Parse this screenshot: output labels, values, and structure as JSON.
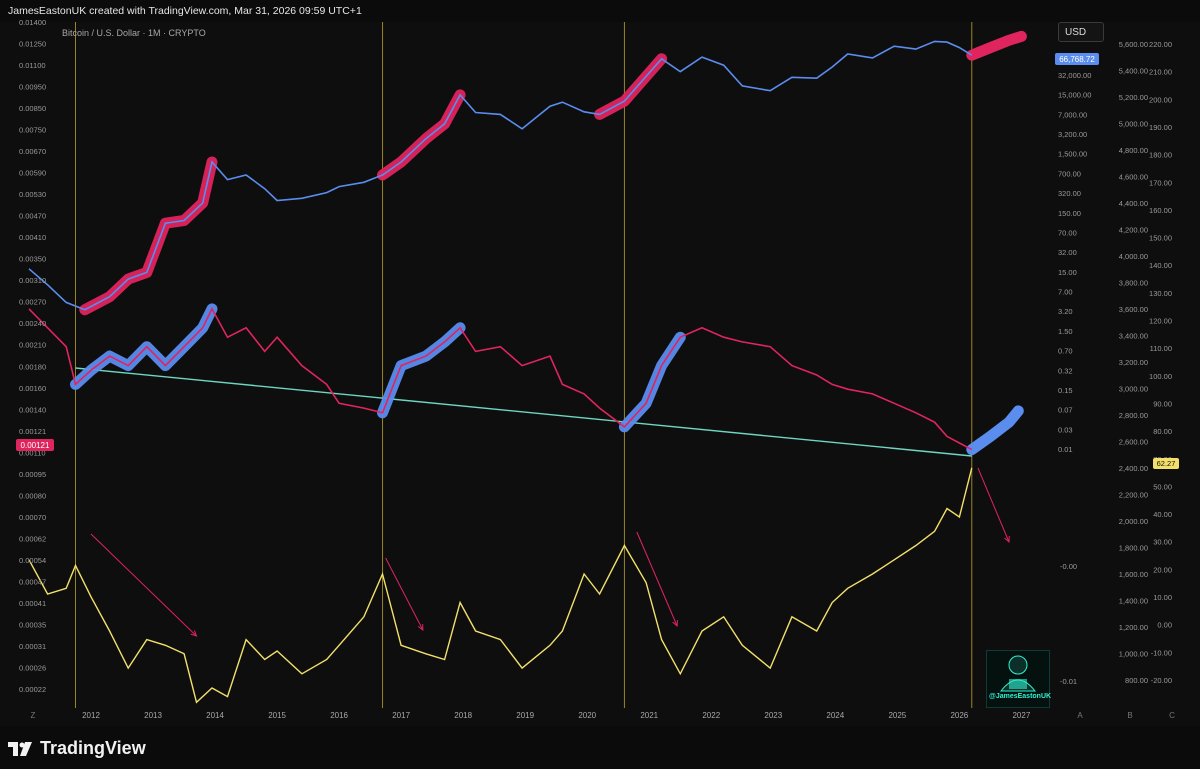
{
  "header": {
    "attribution": "JamesEastonUK created with TradingView.com, Mar 31, 2026 09:59 UTC+1"
  },
  "chart_meta": {
    "symbol_title": "Bitcoin / U.S. Dollar · 1M · CRYPTO",
    "currency_button": "USD",
    "last_price_label": "66,768.72",
    "left_price_label": "0.00121",
    "oscillator_label": "62.27",
    "watermark_label": "@JamesEastonUK",
    "footer_brand": "TradingView",
    "corner_left": "Z",
    "corner_a": "A",
    "corner_b": "B",
    "corner_c": "C"
  },
  "colors": {
    "background": "#0e0e0f",
    "price_line": "#5b8def",
    "ratio_line": "#e0245e",
    "oscillator_line": "#f3e06a",
    "trendline": "#6fd6c1",
    "cycle_marker": "#9a8524",
    "highlight_pink": "#e0245e",
    "highlight_blue": "#5b8def"
  },
  "chart_data": {
    "type": "line",
    "title": "Bitcoin / U.S. Dollar · 1M · CRYPTO",
    "x_ticks": [
      "2012",
      "2013",
      "2014",
      "2015",
      "2016",
      "2017",
      "2018",
      "2019",
      "2020",
      "2021",
      "2022",
      "2023",
      "2024",
      "2025",
      "2026",
      "2027"
    ],
    "cycle_markers": [
      2011.75,
      2016.7,
      2020.6,
      2026.2
    ],
    "axes": {
      "left_ratio": [
        "0.01400",
        "0.01250",
        "0.01100",
        "0.00950",
        "0.00850",
        "0.00750",
        "0.00670",
        "0.00590",
        "0.00530",
        "0.00470",
        "0.00410",
        "0.00350",
        "0.00310",
        "0.00270",
        "0.00240",
        "0.00210",
        "0.00180",
        "0.00160",
        "0.00140",
        "0.00121",
        "0.00110",
        "0.00095",
        "0.00080",
        "0.00070",
        "0.00062",
        "0.00054",
        "0.00047",
        "0.00041",
        "0.00035",
        "0.00031",
        "0.00026",
        "0.00022"
      ],
      "price_usd_log": [
        "66,768.72",
        "32,000.00",
        "15,000.00",
        "7,000.00",
        "3,200.00",
        "1,500.00",
        "700.00",
        "320.00",
        "150.00",
        "70.00",
        "32.00",
        "15.00",
        "7.00",
        "3.20",
        "1.50",
        "0.70",
        "0.32",
        "0.15",
        "0.07",
        "0.03",
        "0.01",
        "-0.00",
        "-0.01"
      ],
      "right_a": [
        "5,600.00",
        "5,400.00",
        "5,200.00",
        "5,000.00",
        "4,800.00",
        "4,600.00",
        "4,400.00",
        "4,200.00",
        "4,000.00",
        "3,800.00",
        "3,600.00",
        "3,400.00",
        "3,200.00",
        "3,000.00",
        "2,800.00",
        "2,600.00",
        "2,400.00",
        "2,200.00",
        "2,000.00",
        "1,800.00",
        "1,600.00",
        "1,400.00",
        "1,200.00",
        "1,000.00",
        "800.00"
      ],
      "right_b": [
        "220.00",
        "210.00",
        "200.00",
        "190.00",
        "180.00",
        "170.00",
        "160.00",
        "150.00",
        "140.00",
        "130.00",
        "120.00",
        "110.00",
        "100.00",
        "90.00",
        "80.00",
        "70.00",
        "62.27",
        "50.00",
        "40.00",
        "30.00",
        "20.00",
        "10.00",
        "0.00",
        "-10.00",
        "-20.00"
      ]
    },
    "series": [
      {
        "name": "BTCUSD (log)",
        "unit": "USD",
        "points": [
          [
            2011.0,
            15
          ],
          [
            2011.3,
            8
          ],
          [
            2011.6,
            4
          ],
          [
            2011.9,
            3
          ],
          [
            2012.3,
            5
          ],
          [
            2012.6,
            10
          ],
          [
            2012.9,
            13
          ],
          [
            2013.2,
            90
          ],
          [
            2013.5,
            100
          ],
          [
            2013.8,
            200
          ],
          [
            2013.95,
            1000
          ],
          [
            2014.2,
            500
          ],
          [
            2014.5,
            600
          ],
          [
            2014.8,
            350
          ],
          [
            2015.0,
            220
          ],
          [
            2015.4,
            240
          ],
          [
            2015.8,
            300
          ],
          [
            2016.0,
            380
          ],
          [
            2016.4,
            450
          ],
          [
            2016.7,
            600
          ],
          [
            2017.0,
            1000
          ],
          [
            2017.4,
            2500
          ],
          [
            2017.7,
            4500
          ],
          [
            2017.95,
            14000
          ],
          [
            2018.2,
            7000
          ],
          [
            2018.6,
            6500
          ],
          [
            2018.95,
            3700
          ],
          [
            2019.4,
            9000
          ],
          [
            2019.6,
            10500
          ],
          [
            2019.95,
            7200
          ],
          [
            2020.2,
            6500
          ],
          [
            2020.6,
            11000
          ],
          [
            2020.95,
            29000
          ],
          [
            2021.2,
            58000
          ],
          [
            2021.5,
            35000
          ],
          [
            2021.85,
            62000
          ],
          [
            2022.2,
            45000
          ],
          [
            2022.5,
            20000
          ],
          [
            2022.95,
            16500
          ],
          [
            2023.3,
            28000
          ],
          [
            2023.7,
            27000
          ],
          [
            2023.95,
            42000
          ],
          [
            2024.2,
            70000
          ],
          [
            2024.6,
            60000
          ],
          [
            2024.95,
            95000
          ],
          [
            2025.3,
            85000
          ],
          [
            2025.6,
            115000
          ],
          [
            2025.8,
            112000
          ],
          [
            2026.0,
            90000
          ],
          [
            2026.2,
            66768.72
          ]
        ]
      },
      {
        "name": "BTC ratio",
        "points": [
          [
            2011.0,
            0.0027
          ],
          [
            2011.3,
            0.0025
          ],
          [
            2011.6,
            0.0023
          ],
          [
            2011.75,
            0.0019
          ],
          [
            2012.0,
            0.00205
          ],
          [
            2012.3,
            0.0022
          ],
          [
            2012.6,
            0.0021
          ],
          [
            2012.9,
            0.0023
          ],
          [
            2013.2,
            0.0021
          ],
          [
            2013.5,
            0.0023
          ],
          [
            2013.8,
            0.0025
          ],
          [
            2013.95,
            0.0027
          ],
          [
            2014.2,
            0.0024
          ],
          [
            2014.5,
            0.0025
          ],
          [
            2014.8,
            0.00225
          ],
          [
            2015.0,
            0.0024
          ],
          [
            2015.4,
            0.0021
          ],
          [
            2015.8,
            0.0019
          ],
          [
            2016.0,
            0.0017
          ],
          [
            2016.4,
            0.00165
          ],
          [
            2016.7,
            0.0016
          ],
          [
            2017.0,
            0.0021
          ],
          [
            2017.4,
            0.0022
          ],
          [
            2017.7,
            0.00235
          ],
          [
            2017.95,
            0.0025
          ],
          [
            2018.2,
            0.00225
          ],
          [
            2018.6,
            0.0023
          ],
          [
            2018.95,
            0.0021
          ],
          [
            2019.4,
            0.0022
          ],
          [
            2019.6,
            0.0019
          ],
          [
            2019.95,
            0.0018
          ],
          [
            2020.2,
            0.00165
          ],
          [
            2020.6,
            0.00145
          ],
          [
            2020.95,
            0.0017
          ],
          [
            2021.2,
            0.0021
          ],
          [
            2021.5,
            0.0024
          ],
          [
            2021.85,
            0.0025
          ],
          [
            2022.2,
            0.0024
          ],
          [
            2022.5,
            0.00235
          ],
          [
            2022.95,
            0.0023
          ],
          [
            2023.3,
            0.0021
          ],
          [
            2023.7,
            0.002
          ],
          [
            2023.95,
            0.0019
          ],
          [
            2024.2,
            0.00185
          ],
          [
            2024.6,
            0.0018
          ],
          [
            2024.95,
            0.0017
          ],
          [
            2025.3,
            0.0016
          ],
          [
            2025.6,
            0.0015
          ],
          [
            2025.8,
            0.00135
          ],
          [
            2026.0,
            0.00128
          ],
          [
            2026.2,
            0.00121
          ]
        ]
      },
      {
        "name": "Oscillator",
        "points": [
          [
            2011.0,
            30
          ],
          [
            2011.3,
            18
          ],
          [
            2011.6,
            20
          ],
          [
            2011.75,
            28
          ],
          [
            2012.0,
            17
          ],
          [
            2012.3,
            5
          ],
          [
            2012.6,
            -8
          ],
          [
            2012.9,
            2
          ],
          [
            2013.2,
            0
          ],
          [
            2013.5,
            -3
          ],
          [
            2013.7,
            -20
          ],
          [
            2013.95,
            -15
          ],
          [
            2014.2,
            -18
          ],
          [
            2014.5,
            2
          ],
          [
            2014.8,
            -5
          ],
          [
            2015.0,
            -2
          ],
          [
            2015.4,
            -10
          ],
          [
            2015.8,
            -5
          ],
          [
            2016.0,
            0
          ],
          [
            2016.4,
            10
          ],
          [
            2016.7,
            25
          ],
          [
            2017.0,
            0
          ],
          [
            2017.4,
            -3
          ],
          [
            2017.7,
            -5
          ],
          [
            2017.95,
            15
          ],
          [
            2018.2,
            5
          ],
          [
            2018.6,
            2
          ],
          [
            2018.95,
            -8
          ],
          [
            2019.4,
            0
          ],
          [
            2019.6,
            5
          ],
          [
            2019.95,
            25
          ],
          [
            2020.2,
            18
          ],
          [
            2020.6,
            35
          ],
          [
            2020.95,
            22
          ],
          [
            2021.2,
            2
          ],
          [
            2021.5,
            -10
          ],
          [
            2021.85,
            5
          ],
          [
            2022.2,
            10
          ],
          [
            2022.5,
            0
          ],
          [
            2022.95,
            -8
          ],
          [
            2023.3,
            10
          ],
          [
            2023.7,
            5
          ],
          [
            2023.95,
            15
          ],
          [
            2024.2,
            20
          ],
          [
            2024.6,
            25
          ],
          [
            2024.95,
            30
          ],
          [
            2025.3,
            35
          ],
          [
            2025.6,
            40
          ],
          [
            2025.8,
            48
          ],
          [
            2026.0,
            45
          ],
          [
            2026.2,
            62.27
          ]
        ]
      }
    ],
    "legend": "none",
    "grid": false
  }
}
